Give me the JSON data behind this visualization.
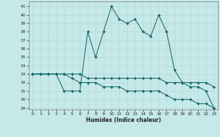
{
  "xlabel": "Humidex (Indice chaleur)",
  "bg_color": "#c5e8e8",
  "line_color": "#1a6b6b",
  "grid_color": "#b8dada",
  "xlim": [
    -0.5,
    23.5
  ],
  "ylim": [
    28.8,
    41.6
  ],
  "yticks": [
    29,
    30,
    31,
    32,
    33,
    34,
    35,
    36,
    37,
    38,
    39,
    40,
    41
  ],
  "xticks": [
    0,
    1,
    2,
    3,
    4,
    5,
    6,
    7,
    8,
    9,
    10,
    11,
    12,
    13,
    14,
    15,
    16,
    17,
    18,
    19,
    20,
    21,
    22,
    23
  ],
  "series1_x": [
    0,
    1,
    2,
    3,
    4,
    5,
    6,
    7,
    8,
    9,
    10,
    11,
    12,
    13,
    14,
    15,
    16,
    17,
    18,
    19,
    20,
    21,
    22,
    23
  ],
  "series1_y": [
    33,
    33,
    33,
    33,
    31,
    31,
    31,
    38,
    35,
    38,
    41,
    39.5,
    39,
    39.5,
    38,
    37.5,
    40,
    38,
    33.5,
    32,
    31.5,
    31.5,
    31,
    29
  ],
  "series2_x": [
    0,
    1,
    2,
    3,
    4,
    5,
    6,
    7,
    8,
    9,
    10,
    11,
    12,
    13,
    14,
    15,
    16,
    17,
    18,
    19,
    20,
    21,
    22,
    23
  ],
  "series2_y": [
    33,
    33,
    33,
    33,
    33,
    33,
    33,
    32.5,
    32.5,
    32.5,
    32.5,
    32.5,
    32.5,
    32.5,
    32.5,
    32.5,
    32.5,
    32,
    32,
    32,
    32,
    32,
    32,
    31.5
  ],
  "series3_x": [
    0,
    1,
    2,
    3,
    4,
    5,
    6,
    7,
    8,
    9,
    10,
    11,
    12,
    13,
    14,
    15,
    16,
    17,
    18,
    19,
    20,
    21,
    22,
    23
  ],
  "series3_y": [
    33,
    33,
    33,
    33,
    33,
    32.5,
    32,
    32,
    32,
    31.5,
    31.5,
    31.5,
    31,
    31,
    31,
    31,
    31,
    30.5,
    30,
    30,
    30,
    29.5,
    29.5,
    29
  ]
}
